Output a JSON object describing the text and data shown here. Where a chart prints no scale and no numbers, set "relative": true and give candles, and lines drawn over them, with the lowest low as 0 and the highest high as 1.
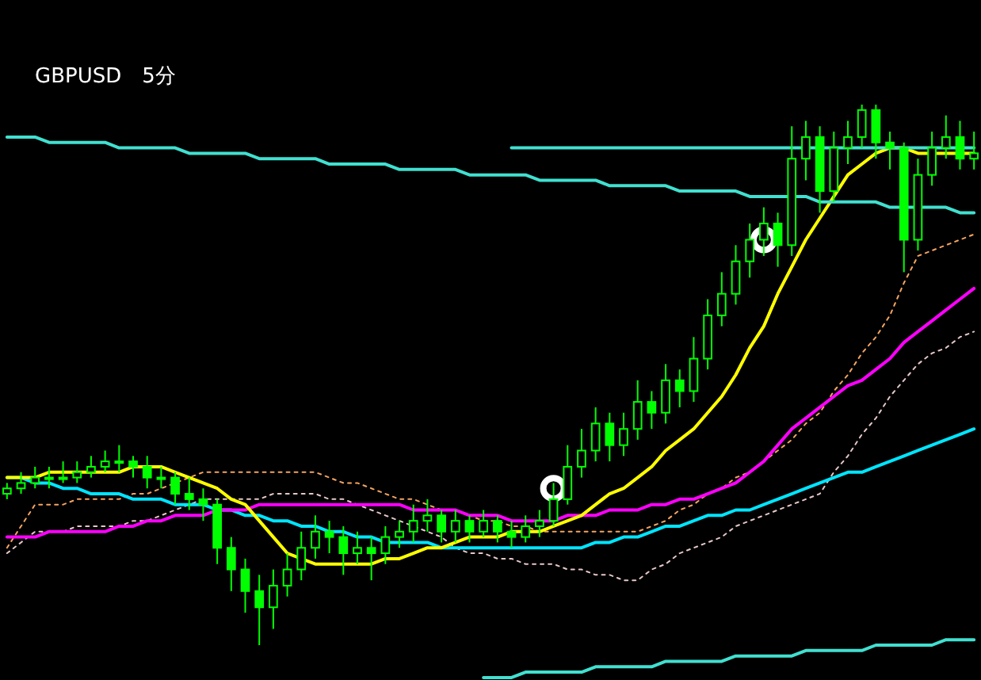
{
  "chart_data": {
    "type": "candlestick",
    "title": "GBPUSD　5分",
    "relative": true,
    "color": "#00ff00",
    "categories": [
      null,
      null,
      null,
      null,
      null,
      null,
      null,
      null,
      null,
      null,
      null,
      null,
      null,
      null,
      null,
      null,
      null,
      null,
      null,
      null,
      null,
      null,
      null,
      null,
      null,
      null,
      null,
      null,
      null,
      null,
      null,
      null,
      null,
      null,
      null,
      null,
      null,
      null,
      null,
      null,
      null,
      null,
      null,
      null,
      null,
      null,
      null,
      null,
      null,
      null,
      null,
      null,
      null,
      null,
      null,
      null,
      null,
      null,
      null,
      null,
      null,
      null,
      null,
      null,
      null,
      null,
      null,
      null,
      null,
      null
    ],
    "ohlc": [
      [
        0.28,
        0.3,
        0.27,
        0.29
      ],
      [
        0.29,
        0.32,
        0.28,
        0.3
      ],
      [
        0.3,
        0.33,
        0.29,
        0.31
      ],
      [
        0.31,
        0.33,
        0.29,
        0.31
      ],
      [
        0.31,
        0.34,
        0.3,
        0.31
      ],
      [
        0.31,
        0.34,
        0.3,
        0.32
      ],
      [
        0.32,
        0.35,
        0.31,
        0.33
      ],
      [
        0.33,
        0.36,
        0.32,
        0.34
      ],
      [
        0.34,
        0.37,
        0.32,
        0.34
      ],
      [
        0.34,
        0.35,
        0.31,
        0.33
      ],
      [
        0.33,
        0.35,
        0.29,
        0.31
      ],
      [
        0.31,
        0.33,
        0.29,
        0.31
      ],
      [
        0.31,
        0.32,
        0.26,
        0.28
      ],
      [
        0.28,
        0.31,
        0.25,
        0.27
      ],
      [
        0.27,
        0.29,
        0.23,
        0.26
      ],
      [
        0.26,
        0.27,
        0.15,
        0.18
      ],
      [
        0.18,
        0.2,
        0.1,
        0.14
      ],
      [
        0.14,
        0.16,
        0.06,
        0.1
      ],
      [
        0.1,
        0.13,
        0,
        0.07
      ],
      [
        0.07,
        0.14,
        0.03,
        0.11
      ],
      [
        0.11,
        0.17,
        0.09,
        0.14
      ],
      [
        0.14,
        0.21,
        0.12,
        0.18
      ],
      [
        0.18,
        0.24,
        0.16,
        0.21
      ],
      [
        0.21,
        0.23,
        0.17,
        0.2
      ],
      [
        0.2,
        0.22,
        0.13,
        0.17
      ],
      [
        0.17,
        0.21,
        0.15,
        0.18
      ],
      [
        0.18,
        0.2,
        0.12,
        0.17
      ],
      [
        0.17,
        0.22,
        0.15,
        0.2
      ],
      [
        0.2,
        0.23,
        0.18,
        0.21
      ],
      [
        0.21,
        0.26,
        0.19,
        0.23
      ],
      [
        0.23,
        0.27,
        0.21,
        0.24
      ],
      [
        0.24,
        0.25,
        0.19,
        0.21
      ],
      [
        0.21,
        0.25,
        0.19,
        0.23
      ],
      [
        0.23,
        0.24,
        0.19,
        0.21
      ],
      [
        0.21,
        0.25,
        0.2,
        0.23
      ],
      [
        0.23,
        0.24,
        0.19,
        0.21
      ],
      [
        0.21,
        0.23,
        0.18,
        0.2
      ],
      [
        0.2,
        0.24,
        0.19,
        0.22
      ],
      [
        0.22,
        0.25,
        0.2,
        0.23
      ],
      [
        0.23,
        0.3,
        0.22,
        0.27
      ],
      [
        0.27,
        0.37,
        0.26,
        0.33
      ],
      [
        0.33,
        0.4,
        0.31,
        0.36
      ],
      [
        0.36,
        0.44,
        0.34,
        0.41
      ],
      [
        0.41,
        0.43,
        0.34,
        0.37
      ],
      [
        0.37,
        0.43,
        0.35,
        0.4
      ],
      [
        0.4,
        0.49,
        0.38,
        0.45
      ],
      [
        0.45,
        0.47,
        0.4,
        0.43
      ],
      [
        0.43,
        0.52,
        0.41,
        0.49
      ],
      [
        0.49,
        0.51,
        0.44,
        0.47
      ],
      [
        0.47,
        0.57,
        0.45,
        0.53
      ],
      [
        0.53,
        0.64,
        0.51,
        0.61
      ],
      [
        0.61,
        0.69,
        0.59,
        0.65
      ],
      [
        0.65,
        0.74,
        0.63,
        0.71
      ],
      [
        0.71,
        0.78,
        0.68,
        0.75
      ],
      [
        0.75,
        0.81,
        0.72,
        0.78
      ],
      [
        0.78,
        0.8,
        0.7,
        0.74
      ],
      [
        0.74,
        0.96,
        0.72,
        0.9
      ],
      [
        0.9,
        0.97,
        0.86,
        0.94
      ],
      [
        0.94,
        0.96,
        0.8,
        0.84
      ],
      [
        0.84,
        0.95,
        0.82,
        0.92
      ],
      [
        0.92,
        0.97,
        0.89,
        0.94
      ],
      [
        0.94,
        1,
        0.92,
        0.99
      ],
      [
        0.99,
        1,
        0.9,
        0.93
      ],
      [
        0.93,
        0.95,
        0.88,
        0.92
      ],
      [
        0.92,
        0.93,
        0.69,
        0.75
      ],
      [
        0.75,
        0.9,
        0.73,
        0.87
      ],
      [
        0.87,
        0.95,
        0.85,
        0.92
      ],
      [
        0.92,
        0.98,
        0.9,
        0.94
      ],
      [
        0.94,
        0.97,
        0.88,
        0.9
      ],
      [
        0.9,
        0.95,
        0.88,
        0.91
      ]
    ],
    "series": [
      {
        "type": "line",
        "color": "#f4a460",
        "line_style": "dotted",
        "values": [
          0.18,
          0.22,
          0.26,
          0.26,
          0.26,
          0.27,
          0.27,
          0.27,
          0.27,
          0.28,
          0.28,
          0.29,
          0.3,
          0.31,
          0.32,
          0.32,
          0.32,
          0.32,
          0.32,
          0.32,
          0.32,
          0.32,
          0.32,
          0.31,
          0.3,
          0.3,
          0.29,
          0.28,
          0.27,
          0.27,
          0.26,
          0.25,
          0.25,
          0.24,
          0.23,
          0.23,
          0.22,
          0.22,
          0.21,
          0.21,
          0.21,
          0.21,
          0.21,
          0.21,
          0.21,
          0.21,
          0.22,
          0.23,
          0.25,
          0.26,
          0.28,
          0.29,
          0.31,
          0.32,
          0.34,
          0.36,
          0.38,
          0.41,
          0.43,
          0.47,
          0.5,
          0.54,
          0.57,
          0.61,
          0.67,
          0.72,
          0.73,
          0.74,
          0.75,
          0.76
        ]
      },
      {
        "type": "line",
        "color": "#e6c8c8",
        "line_style": "dotted",
        "values": [
          0.17,
          0.19,
          0.21,
          0.21,
          0.21,
          0.22,
          0.22,
          0.22,
          0.22,
          0.23,
          0.23,
          0.24,
          0.25,
          0.26,
          0.27,
          0.27,
          0.27,
          0.27,
          0.27,
          0.28,
          0.28,
          0.28,
          0.28,
          0.27,
          0.27,
          0.26,
          0.25,
          0.24,
          0.23,
          0.22,
          0.21,
          0.2,
          0.18,
          0.17,
          0.17,
          0.16,
          0.16,
          0.15,
          0.15,
          0.15,
          0.14,
          0.14,
          0.13,
          0.13,
          0.12,
          0.12,
          0.14,
          0.15,
          0.17,
          0.18,
          0.19,
          0.2,
          0.22,
          0.23,
          0.24,
          0.25,
          0.26,
          0.27,
          0.28,
          0.32,
          0.35,
          0.39,
          0.42,
          0.46,
          0.49,
          0.52,
          0.54,
          0.55,
          0.57,
          0.58
        ]
      },
      {
        "type": "line",
        "color": "#00e5ff",
        "line_style": "solid",
        "values": [
          0.31,
          0.31,
          0.3,
          0.3,
          0.29,
          0.29,
          0.28,
          0.28,
          0.28,
          0.27,
          0.27,
          0.27,
          0.26,
          0.26,
          0.26,
          0.25,
          0.25,
          0.24,
          0.24,
          0.23,
          0.23,
          0.22,
          0.22,
          0.21,
          0.21,
          0.2,
          0.2,
          0.19,
          0.19,
          0.19,
          0.19,
          0.18,
          0.18,
          0.18,
          0.18,
          0.18,
          0.18,
          0.18,
          0.18,
          0.18,
          0.18,
          0.18,
          0.19,
          0.19,
          0.2,
          0.2,
          0.21,
          0.22,
          0.22,
          0.23,
          0.24,
          0.24,
          0.25,
          0.25,
          0.26,
          0.27,
          0.28,
          0.29,
          0.3,
          0.31,
          0.32,
          0.32,
          0.33,
          0.34,
          0.35,
          0.36,
          0.37,
          0.38,
          0.39,
          0.4
        ]
      },
      {
        "type": "line",
        "color": "#ff00ff",
        "line_style": "solid",
        "values": [
          0.2,
          0.2,
          0.2,
          0.21,
          0.21,
          0.21,
          0.21,
          0.21,
          0.22,
          0.22,
          0.23,
          0.23,
          0.24,
          0.24,
          0.24,
          0.25,
          0.25,
          0.25,
          0.26,
          0.26,
          0.26,
          0.26,
          0.26,
          0.26,
          0.26,
          0.26,
          0.26,
          0.26,
          0.26,
          0.25,
          0.25,
          0.25,
          0.25,
          0.24,
          0.24,
          0.24,
          0.23,
          0.23,
          0.23,
          0.23,
          0.24,
          0.24,
          0.24,
          0.25,
          0.25,
          0.25,
          0.26,
          0.26,
          0.27,
          0.27,
          0.28,
          0.29,
          0.3,
          0.32,
          0.34,
          0.37,
          0.4,
          0.42,
          0.44,
          0.46,
          0.48,
          0.49,
          0.51,
          0.53,
          0.56,
          0.58,
          0.6,
          0.62,
          0.64,
          0.66
        ]
      },
      {
        "type": "line",
        "color": "#ffff00",
        "line_style": "solid",
        "values": [
          0.31,
          0.31,
          0.31,
          0.32,
          0.32,
          0.32,
          0.32,
          0.32,
          0.32,
          0.33,
          0.33,
          0.33,
          0.32,
          0.31,
          0.3,
          0.29,
          0.27,
          0.26,
          0.23,
          0.2,
          0.17,
          0.16,
          0.15,
          0.15,
          0.15,
          0.15,
          0.15,
          0.16,
          0.16,
          0.17,
          0.18,
          0.18,
          0.19,
          0.2,
          0.2,
          0.2,
          0.21,
          0.21,
          0.21,
          0.22,
          0.23,
          0.24,
          0.26,
          0.28,
          0.29,
          0.31,
          0.33,
          0.36,
          0.38,
          0.4,
          0.43,
          0.46,
          0.5,
          0.55,
          0.59,
          0.65,
          0.7,
          0.75,
          0.79,
          0.83,
          0.87,
          0.89,
          0.91,
          0.92,
          0.92,
          0.91,
          0.91,
          0.91,
          0.91,
          0.91
        ]
      },
      {
        "type": "line",
        "color": "#40e0d0",
        "line_style": "solid",
        "values": [
          0.94,
          0.94,
          0.94,
          0.93,
          0.93,
          0.93,
          0.93,
          0.93,
          0.92,
          0.92,
          0.92,
          0.92,
          0.92,
          0.91,
          0.91,
          0.91,
          0.91,
          0.91,
          0.9,
          0.9,
          0.9,
          0.9,
          0.9,
          0.89,
          0.89,
          0.89,
          0.89,
          0.89,
          0.88,
          0.88,
          0.88,
          0.88,
          0.88,
          0.87,
          0.87,
          0.87,
          0.87,
          0.87,
          0.86,
          0.86,
          0.86,
          0.86,
          0.86,
          0.85,
          0.85,
          0.85,
          0.85,
          0.85,
          0.84,
          0.84,
          0.84,
          0.84,
          0.84,
          0.83,
          0.83,
          0.83,
          0.83,
          0.83,
          0.82,
          0.82,
          0.82,
          0.82,
          0.82,
          0.81,
          0.81,
          0.81,
          0.81,
          0.81,
          0.8,
          0.8
        ]
      },
      {
        "type": "line",
        "color": "#40e0d0",
        "line_style": "solid",
        "values": [
          null,
          null,
          null,
          null,
          null,
          null,
          null,
          null,
          null,
          null,
          null,
          null,
          null,
          null,
          null,
          null,
          null,
          null,
          null,
          null,
          null,
          null,
          null,
          null,
          null,
          null,
          null,
          null,
          null,
          null,
          null,
          null,
          null,
          null,
          null,
          null,
          0.92,
          0.92,
          0.92,
          0.92,
          0.92,
          0.92,
          0.92,
          0.92,
          0.92,
          0.92,
          0.92,
          0.92,
          0.92,
          0.92,
          0.92,
          0.92,
          0.92,
          0.92,
          0.92,
          0.92,
          0.92,
          0.92,
          0.92,
          0.92,
          0.92,
          0.92,
          0.92,
          0.92,
          0.92,
          0.92,
          0.92,
          0.92,
          0.92,
          0.92
        ]
      },
      {
        "type": "line",
        "color": "#40e0d0",
        "line_style": "solid",
        "values": [
          null,
          null,
          null,
          null,
          null,
          null,
          null,
          null,
          null,
          null,
          null,
          null,
          null,
          null,
          null,
          null,
          null,
          null,
          null,
          null,
          null,
          null,
          null,
          null,
          null,
          null,
          null,
          null,
          null,
          null,
          null,
          null,
          null,
          null,
          -0.06,
          -0.06,
          -0.06,
          -0.05,
          -0.05,
          -0.05,
          -0.05,
          -0.05,
          -0.04,
          -0.04,
          -0.04,
          -0.04,
          -0.04,
          -0.03,
          -0.03,
          -0.03,
          -0.03,
          -0.03,
          -0.02,
          -0.02,
          -0.02,
          -0.02,
          -0.02,
          -0.01,
          -0.01,
          -0.01,
          -0.01,
          -0.01,
          0,
          0,
          0,
          0,
          0,
          0.01,
          0.01,
          0.01
        ]
      },
      {
        "type": "scatter",
        "color": "#ffffff",
        "marker": "circle",
        "values": [
          null,
          null,
          null,
          null,
          null,
          null,
          null,
          null,
          null,
          null,
          null,
          null,
          null,
          null,
          null,
          null,
          null,
          null,
          null,
          null,
          null,
          null,
          null,
          null,
          null,
          null,
          null,
          null,
          null,
          null,
          null,
          null,
          null,
          null,
          null,
          null,
          null,
          null,
          null,
          0.29,
          null,
          null,
          null,
          null,
          null,
          null,
          null,
          null,
          null,
          null,
          null,
          null,
          null,
          null,
          0.75,
          null,
          null,
          null,
          null,
          null,
          null,
          null,
          null,
          null,
          null,
          null,
          null,
          null,
          null,
          null
        ]
      }
    ]
  }
}
